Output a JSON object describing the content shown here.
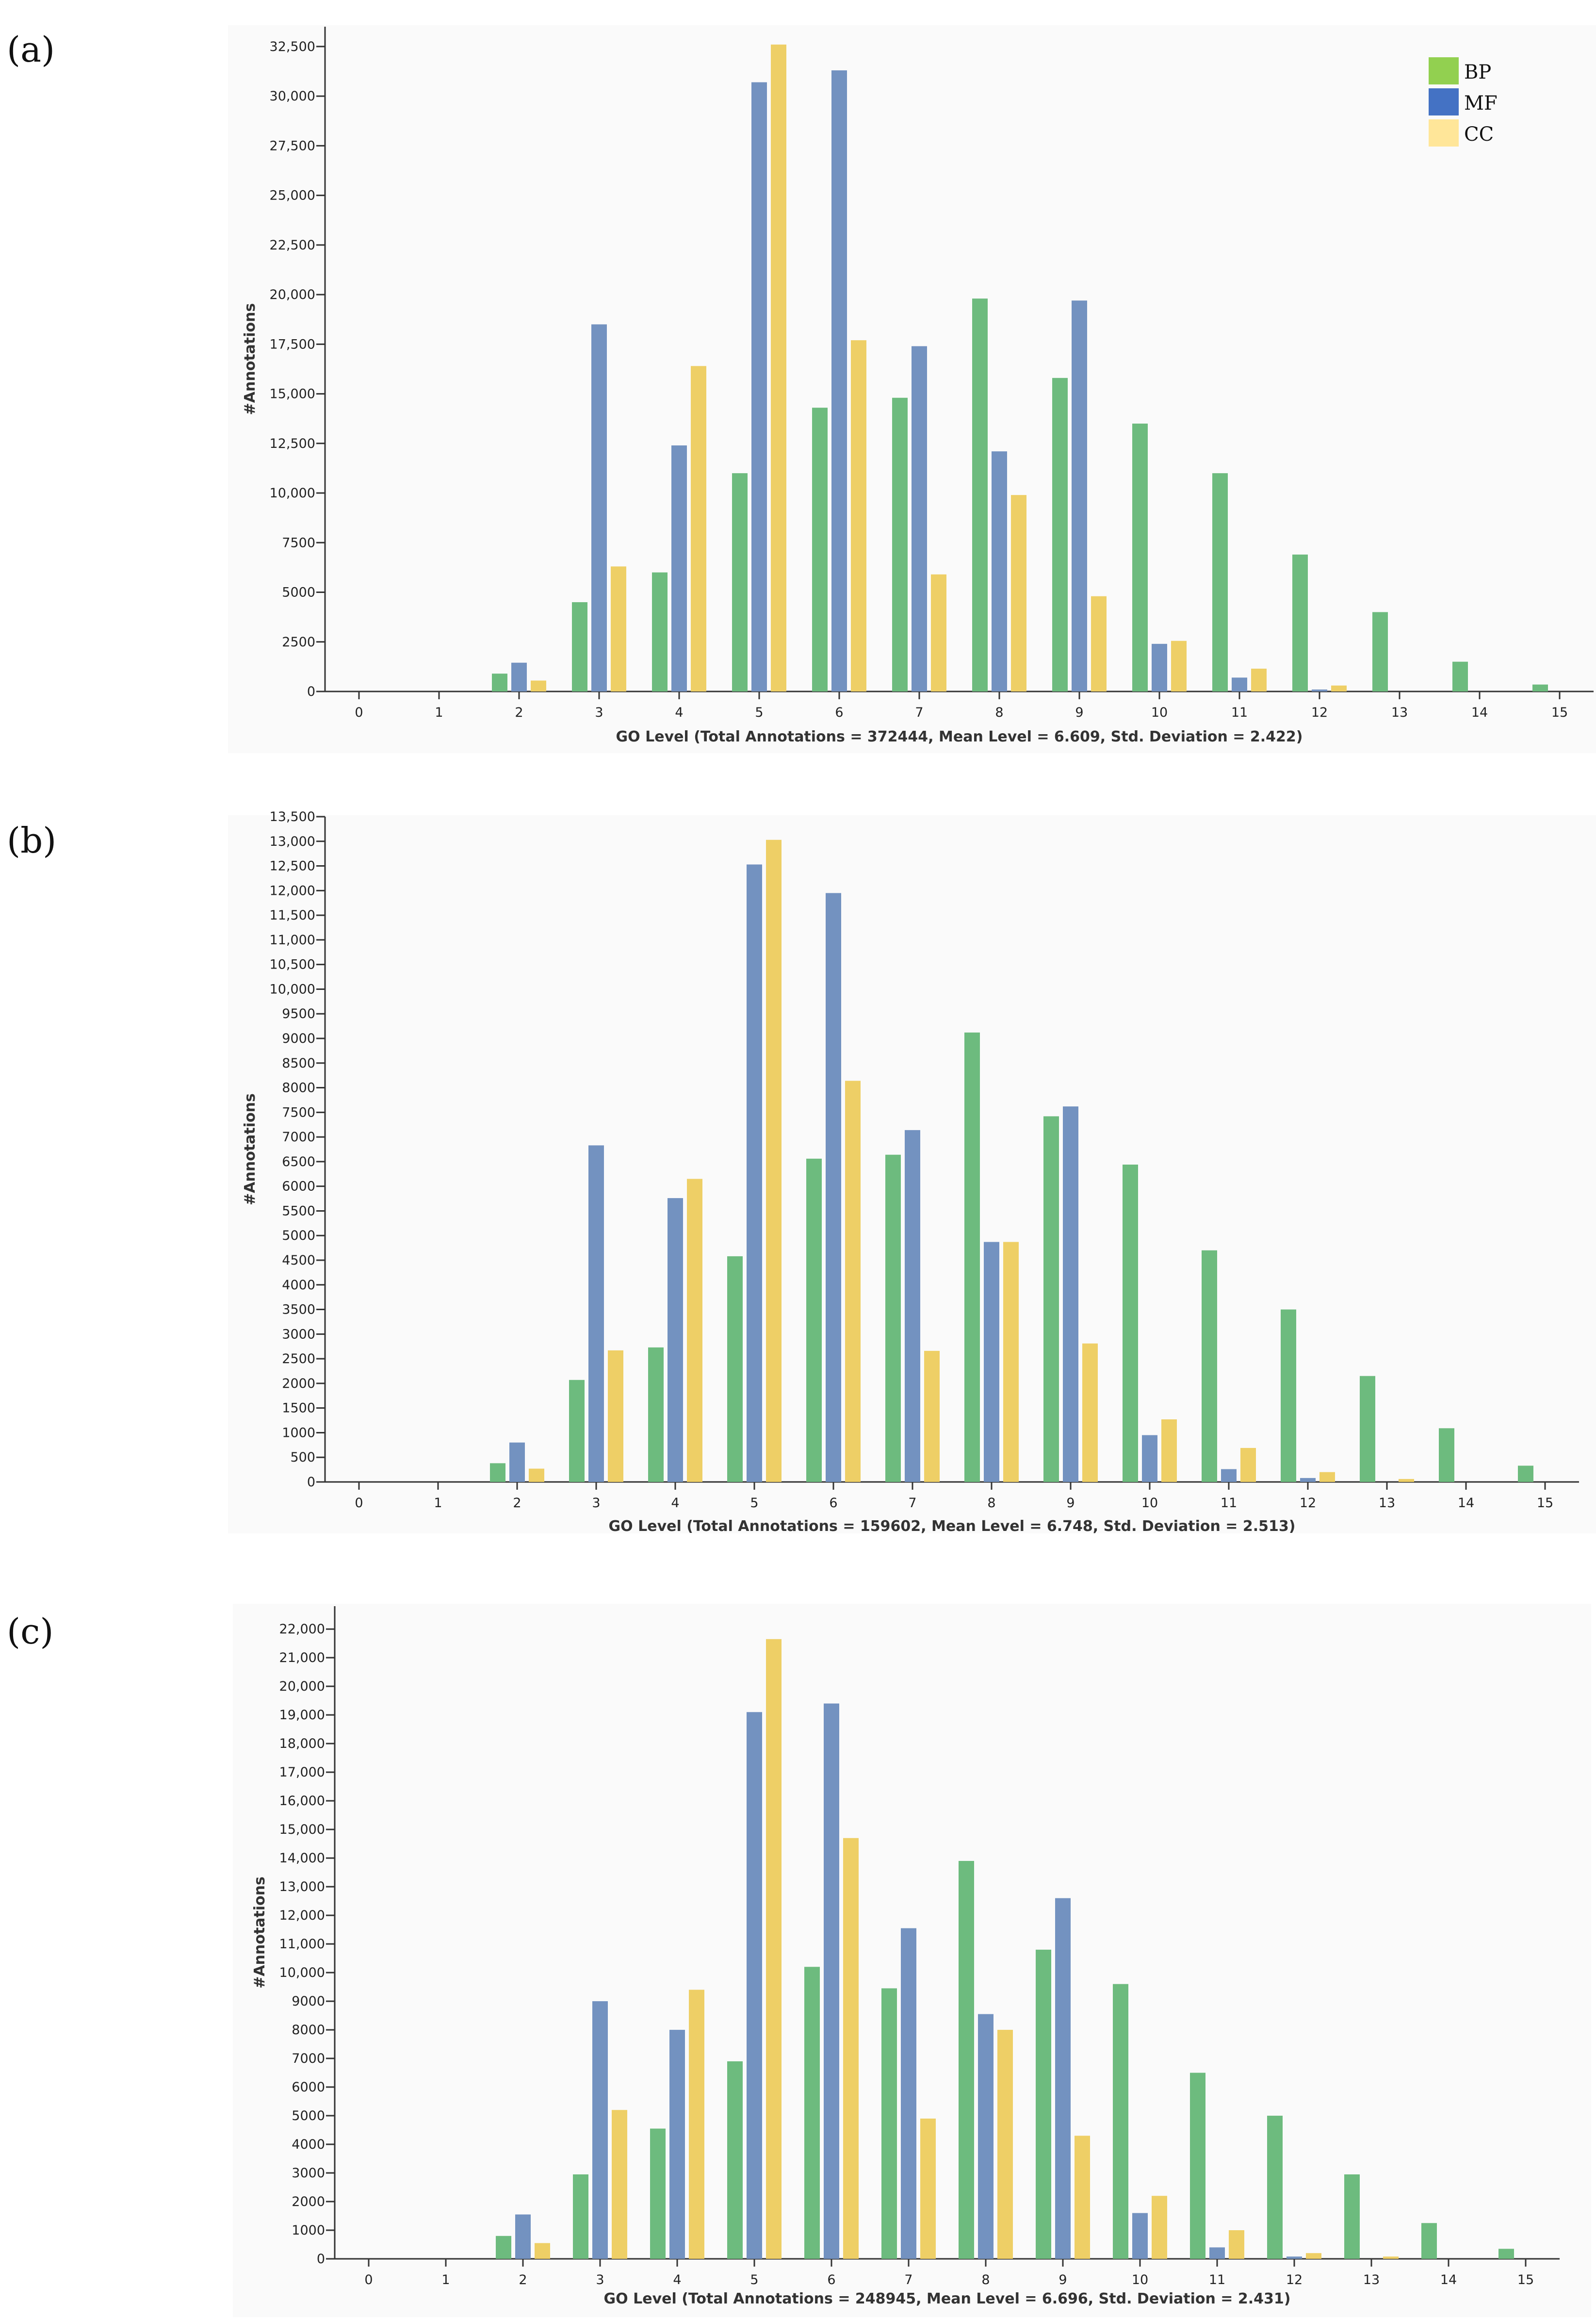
{
  "panels": [
    {
      "label": "(a)"
    },
    {
      "label": "(b)"
    },
    {
      "label": "(c)"
    }
  ],
  "legend": [
    {
      "name": "BP",
      "color": "#92d050"
    },
    {
      "name": "MF",
      "color": "#4472c4"
    },
    {
      "name": "CC",
      "color": "#ffe699"
    }
  ],
  "series_colors": {
    "BP": "#6dbb7e",
    "MF": "#7392c0",
    "CC": "#eecf66"
  },
  "chart_data": [
    {
      "type": "bar",
      "panel": "(a)",
      "categories": [
        "0",
        "1",
        "2",
        "3",
        "4",
        "5",
        "6",
        "7",
        "8",
        "9",
        "10",
        "11",
        "12",
        "13",
        "14",
        "15"
      ],
      "series": [
        {
          "name": "BP",
          "values": [
            0,
            0,
            900,
            4500,
            6000,
            11000,
            14300,
            14800,
            19800,
            15800,
            13500,
            11000,
            6900,
            4000,
            1500,
            350
          ]
        },
        {
          "name": "MF",
          "values": [
            0,
            0,
            1450,
            18500,
            12400,
            30700,
            31300,
            17400,
            12100,
            19700,
            2400,
            700,
            100,
            0,
            0,
            0
          ]
        },
        {
          "name": "CC",
          "values": [
            0,
            0,
            550,
            6300,
            16400,
            32600,
            17700,
            5900,
            9900,
            4800,
            2550,
            1150,
            300,
            0,
            0,
            0
          ]
        }
      ],
      "xlabel": "GO Level  (Total Annotations = 372444, Mean Level = 6.609, Std. Deviation = 2.422)",
      "ylabel": "#Annotations",
      "ylim": [
        0,
        33500
      ],
      "yticks": [
        0,
        2500,
        5000,
        7500,
        10000,
        12500,
        15000,
        17500,
        20000,
        22500,
        25000,
        27500,
        30000,
        32500
      ],
      "ytick_labels": [
        "0",
        "2500",
        "5000",
        "7500",
        "10,000",
        "12,500",
        "15,000",
        "17,500",
        "20,000",
        "22,500",
        "25,000",
        "27,500",
        "30,000",
        "32,500"
      ],
      "legend_position": "top-right"
    },
    {
      "type": "bar",
      "panel": "(b)",
      "categories": [
        "0",
        "1",
        "2",
        "3",
        "4",
        "5",
        "6",
        "7",
        "8",
        "9",
        "10",
        "11",
        "12",
        "13",
        "14",
        "15"
      ],
      "series": [
        {
          "name": "BP",
          "values": [
            0,
            0,
            380,
            2070,
            2730,
            4580,
            6560,
            6640,
            9120,
            7420,
            6440,
            4700,
            3500,
            2150,
            1090,
            330
          ]
        },
        {
          "name": "MF",
          "values": [
            0,
            0,
            800,
            6830,
            5760,
            12530,
            11950,
            7140,
            4870,
            7620,
            950,
            260,
            80,
            0,
            0,
            0
          ]
        },
        {
          "name": "CC",
          "values": [
            0,
            0,
            270,
            2670,
            6150,
            13030,
            8140,
            2660,
            4870,
            2810,
            1270,
            690,
            200,
            60,
            0,
            0
          ]
        }
      ],
      "xlabel": "GO Level  (Total Annotations = 159602, Mean Level = 6.748, Std. Deviation = 2.513)",
      "ylabel": "#Annotations",
      "ylim": [
        0,
        13500
      ],
      "yticks": [
        0,
        500,
        1000,
        1500,
        2000,
        2500,
        3000,
        3500,
        4000,
        4500,
        5000,
        5500,
        6000,
        6500,
        7000,
        7500,
        8000,
        8500,
        9000,
        9500,
        10000,
        10500,
        11000,
        11500,
        12000,
        12500,
        13000,
        13500
      ],
      "ytick_labels": [
        "0",
        "500",
        "1000",
        "1500",
        "2000",
        "2500",
        "3000",
        "3500",
        "4000",
        "4500",
        "5000",
        "5500",
        "6000",
        "6500",
        "7000",
        "7500",
        "8000",
        "8500",
        "9000",
        "9500",
        "10,000",
        "10,500",
        "11,000",
        "11,500",
        "12,000",
        "12,500",
        "13,000",
        "13,500"
      ]
    },
    {
      "type": "bar",
      "panel": "(c)",
      "categories": [
        "0",
        "1",
        "2",
        "3",
        "4",
        "5",
        "6",
        "7",
        "8",
        "9",
        "10",
        "11",
        "12",
        "13",
        "14",
        "15"
      ],
      "series": [
        {
          "name": "BP",
          "values": [
            0,
            0,
            800,
            2950,
            4550,
            6900,
            10200,
            9450,
            13900,
            10800,
            9600,
            6500,
            5000,
            2950,
            1250,
            350
          ]
        },
        {
          "name": "MF",
          "values": [
            0,
            0,
            1550,
            9000,
            8000,
            19100,
            19400,
            11550,
            8550,
            12600,
            1600,
            400,
            80,
            0,
            0,
            0
          ]
        },
        {
          "name": "CC",
          "values": [
            0,
            0,
            550,
            5200,
            9400,
            21650,
            14700,
            4900,
            8000,
            4300,
            2200,
            1000,
            200,
            80,
            0,
            0
          ]
        }
      ],
      "xlabel": "GO Level  (Total Annotations = 248945, Mean Level = 6.696, Std. Deviation = 2.431)",
      "ylabel": "#Annotations",
      "ylim": [
        0,
        22800
      ],
      "yticks": [
        0,
        1000,
        2000,
        3000,
        4000,
        5000,
        6000,
        7000,
        8000,
        9000,
        10000,
        11000,
        12000,
        13000,
        14000,
        15000,
        16000,
        17000,
        18000,
        19000,
        20000,
        21000,
        22000
      ],
      "ytick_labels": [
        "0",
        "1000",
        "2000",
        "3000",
        "4000",
        "5000",
        "6000",
        "7000",
        "8000",
        "9000",
        "10,000",
        "11,000",
        "12,000",
        "13,000",
        "14,000",
        "15,000",
        "16,000",
        "17,000",
        "18,000",
        "19,000",
        "20,000",
        "21,000",
        "22,000"
      ]
    }
  ]
}
